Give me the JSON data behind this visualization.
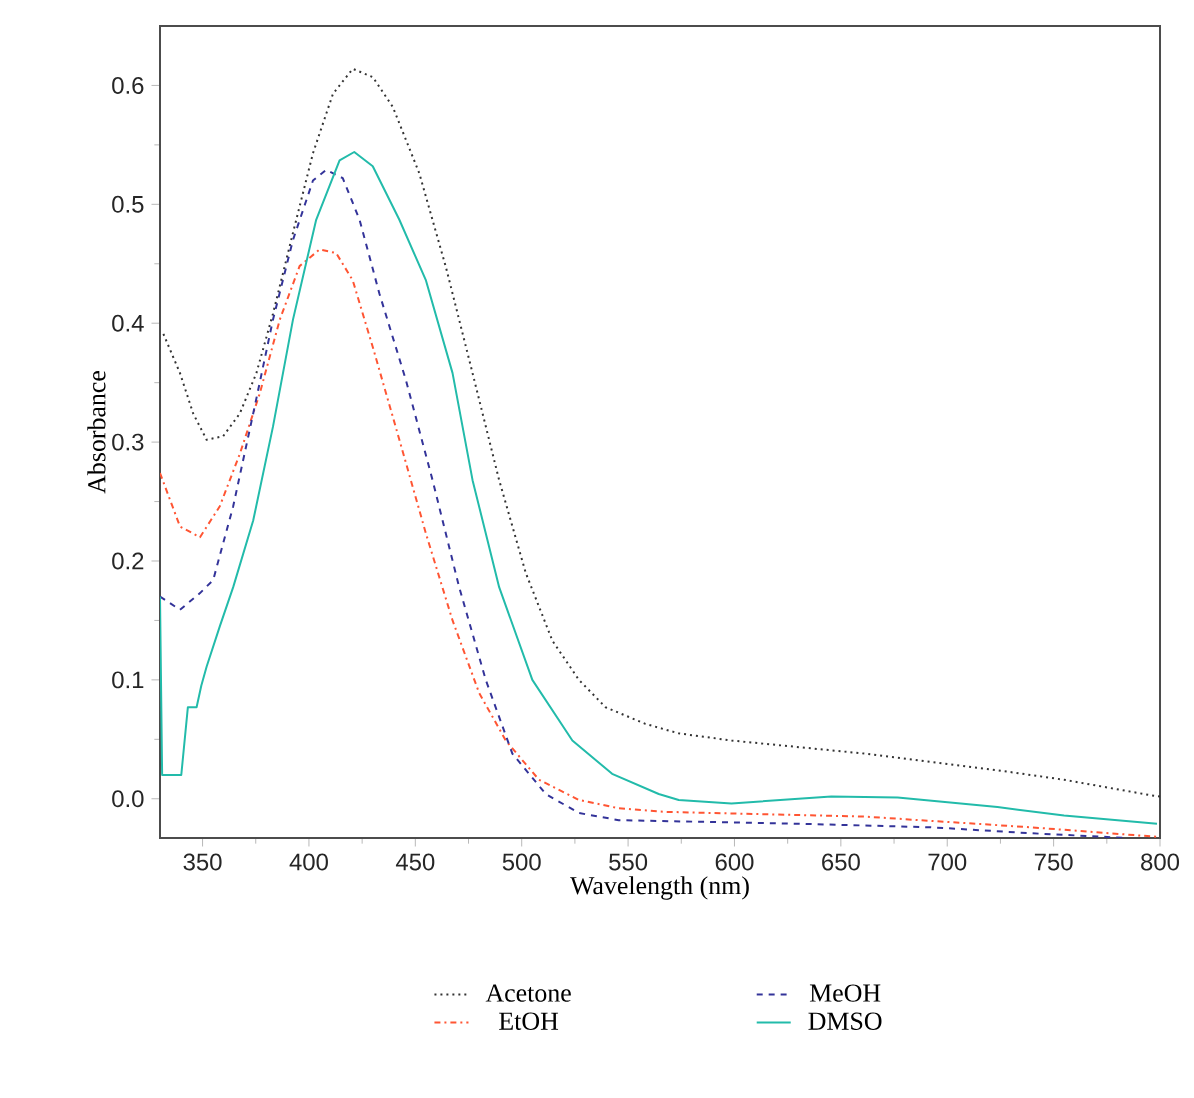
{
  "chart_data": {
    "type": "line",
    "xlabel": "Wavelength (nm)",
    "ylabel": "Absorbance",
    "xlim": [
      330,
      800
    ],
    "ylim": [
      -0.033,
      0.65
    ],
    "xticks": [
      350,
      400,
      450,
      500,
      550,
      600,
      650,
      700,
      750,
      800
    ],
    "yticks": [
      {
        "value": 0,
        "label": "0.0"
      },
      0.1,
      0.2,
      0.3,
      0.4,
      0.5,
      0.6
    ],
    "legend": "bottom",
    "grid": false,
    "series": [
      {
        "name": "Acetone",
        "color": "#333333",
        "line_style": "dotted",
        "x": [
          331.6,
          339.4,
          345.6,
          351.9,
          359.7,
          367.5,
          375.3,
          383.1,
          392.5,
          401.9,
          411.3,
          420.6,
          430,
          439.4,
          451.9,
          464.4,
          476.9,
          489.4,
          501.9,
          514.4,
          526.9,
          539.4,
          558.1,
          573.8,
          598.6,
          661.1,
          723.6,
          754.9,
          795.5,
          800
        ],
        "values": [
          0.391,
          0.358,
          0.324,
          0.302,
          0.305,
          0.324,
          0.358,
          0.408,
          0.476,
          0.543,
          0.593,
          0.614,
          0.607,
          0.582,
          0.526,
          0.447,
          0.358,
          0.268,
          0.19,
          0.133,
          0.1,
          0.077,
          0.063,
          0.055,
          0.049,
          0.038,
          0.024,
          0.016,
          0.003,
          0.002
        ]
      },
      {
        "name": "EtOH",
        "color": "#ff5533",
        "line_style": "dashdot",
        "x": [
          330,
          339.4,
          348.8,
          358.1,
          367.5,
          376.9,
          386.3,
          395.6,
          405,
          412.8,
          420.6,
          430,
          442.5,
          455,
          467.5,
          480,
          492.5,
          508.1,
          526.9,
          545.6,
          567.4,
          661.1,
          739.3,
          798.6
        ],
        "values": [
          0.274,
          0.229,
          0.22,
          0.246,
          0.29,
          0.341,
          0.403,
          0.448,
          0.462,
          0.459,
          0.436,
          0.38,
          0.302,
          0.223,
          0.15,
          0.089,
          0.049,
          0.016,
          -0.001,
          -0.008,
          -0.011,
          -0.015,
          -0.024,
          -0.032
        ]
      },
      {
        "name": "MeOH",
        "color": "#333399",
        "line_style": "dashed",
        "x": [
          330,
          339.4,
          348.8,
          355,
          364.4,
          373.8,
          383.1,
          392.5,
          401.9,
          408.1,
          415.9,
          423.8,
          433.1,
          445.6,
          458.1,
          470.6,
          483.1,
          495.6,
          511.3,
          526.9,
          545.6,
          629.9,
          692.4,
          739.3,
          785
        ],
        "values": [
          0.17,
          0.159,
          0.173,
          0.184,
          0.246,
          0.324,
          0.403,
          0.47,
          0.52,
          0.529,
          0.522,
          0.487,
          0.425,
          0.352,
          0.268,
          0.178,
          0.1,
          0.038,
          0.004,
          -0.012,
          -0.018,
          -0.021,
          -0.024,
          -0.029,
          -0.033
        ]
      },
      {
        "name": "DMSO",
        "color": "#22bbaa",
        "line_style": "solid",
        "x": [
          330,
          331,
          340,
          343.1,
          347.2,
          349.4,
          351.9,
          358.1,
          364.4,
          373.8,
          383.1,
          392.5,
          403.4,
          414.4,
          421.3,
          430,
          442.5,
          455,
          467.5,
          476.9,
          489.4,
          505,
          523.8,
          542.5,
          564.4,
          573.8,
          598.6,
          645.5,
          676.7,
          723.6,
          754.9,
          798.6
        ],
        "values": [
          0.17,
          0.02,
          0.02,
          0.077,
          0.077,
          0.095,
          0.111,
          0.145,
          0.178,
          0.234,
          0.313,
          0.403,
          0.487,
          0.537,
          0.544,
          0.532,
          0.487,
          0.436,
          0.358,
          0.268,
          0.178,
          0.1,
          0.049,
          0.021,
          0.004,
          -0.001,
          -0.004,
          0.002,
          0.001,
          -0.007,
          -0.014,
          -0.021
        ]
      }
    ]
  }
}
